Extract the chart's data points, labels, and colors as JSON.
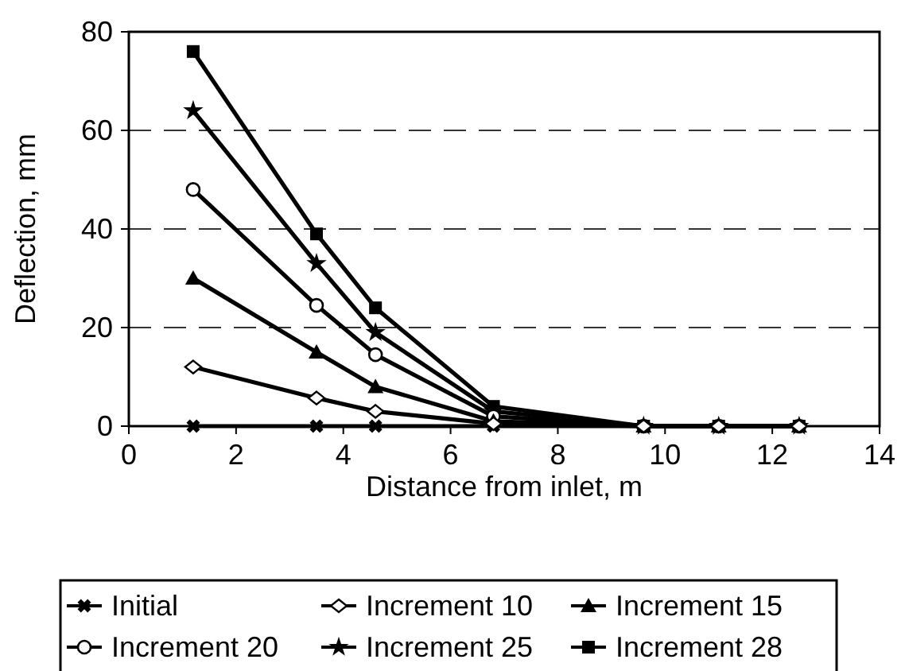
{
  "chart_data": {
    "type": "line",
    "xlabel": "Distance from inlet, m",
    "ylabel": "Deflection, mm",
    "x": [
      1.2,
      3.5,
      4.6,
      6.8,
      9.6,
      11.0,
      12.5
    ],
    "xlim": [
      0,
      14
    ],
    "xticks": [
      0,
      2,
      4,
      6,
      8,
      10,
      12,
      14
    ],
    "ylim": [
      0,
      80
    ],
    "yticks": [
      0,
      20,
      40,
      60,
      80
    ],
    "grid": "y",
    "legend": "bottom",
    "series": [
      {
        "name": "Initial",
        "color": "#000000",
        "marker": "cross",
        "values": [
          0,
          0,
          0,
          0,
          0,
          0,
          0
        ]
      },
      {
        "name": "Increment 10",
        "color": "#000000",
        "marker": "diamond",
        "values": [
          12,
          5.7,
          3,
          0.5,
          0,
          0,
          0
        ]
      },
      {
        "name": "Increment 15",
        "color": "#000000",
        "marker": "triangle",
        "values": [
          30,
          15,
          8,
          1,
          0,
          0,
          0
        ]
      },
      {
        "name": "Increment 20",
        "color": "#000000",
        "marker": "circle",
        "values": [
          48,
          24.5,
          14.5,
          2,
          0,
          0,
          0
        ]
      },
      {
        "name": "Increment 25",
        "color": "#000000",
        "marker": "star",
        "values": [
          64,
          33,
          19,
          3,
          0,
          0,
          0
        ]
      },
      {
        "name": "Increment 28",
        "color": "#000000",
        "marker": "square",
        "values": [
          76,
          39,
          24,
          4,
          0,
          0,
          0
        ]
      }
    ]
  }
}
